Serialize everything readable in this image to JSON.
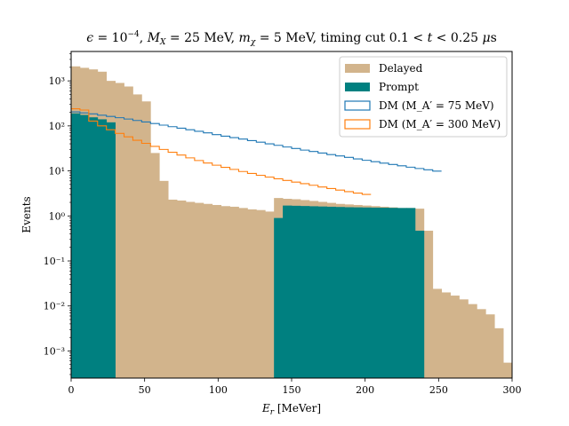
{
  "chart_data": {
    "type": "histogram",
    "title": "ϵ = 10⁻⁴, M_X = 25 MeV, m_χ = 5 MeV, timing cut 0.1 < t < 0.25 μs",
    "xlabel": "E_r [MeVer]",
    "ylabel": "Events",
    "xlim": [
      0,
      300
    ],
    "ylim": [
      0.00025,
      4500
    ],
    "yscale": "log",
    "grid": false,
    "legend_position": "top-right",
    "x_ticks": [
      0,
      50,
      100,
      150,
      200,
      250,
      300
    ],
    "y_ticks": [
      0.001,
      0.01,
      0.1,
      1,
      10,
      100,
      1000
    ],
    "y_tick_labels": [
      "10⁻³",
      "10⁻²",
      "10⁻¹",
      "10⁰",
      "10¹",
      "10²",
      "10³"
    ],
    "bin_edges": [
      0,
      6,
      12,
      18,
      24,
      30,
      36,
      42,
      48,
      54,
      60,
      66,
      72,
      78,
      84,
      90,
      96,
      102,
      108,
      114,
      120,
      126,
      132,
      138,
      144,
      150,
      156,
      162,
      168,
      174,
      180,
      186,
      192,
      198,
      204,
      210,
      216,
      222,
      228,
      234,
      240,
      246,
      252,
      258,
      264,
      270,
      276,
      282,
      288,
      294,
      300
    ],
    "series": [
      {
        "name": "Delayed",
        "style": "filled",
        "color": "#d2b48c",
        "values": [
          2100,
          1950,
          1800,
          1600,
          1000,
          900,
          750,
          500,
          350,
          25,
          6,
          2.3,
          2.2,
          2.05,
          1.95,
          1.85,
          1.75,
          1.65,
          1.6,
          1.5,
          1.4,
          1.35,
          1.25,
          2.5,
          2.4,
          2.35,
          2.25,
          2.15,
          2.05,
          1.95,
          1.85,
          1.8,
          1.75,
          1.7,
          1.65,
          1.6,
          1.55,
          1.5,
          1.5,
          1.45,
          0.47,
          0.024,
          0.02,
          0.017,
          0.014,
          0.011,
          0.0085,
          0.0065,
          0.0032,
          0.00055
        ]
      },
      {
        "name": "Prompt",
        "style": "filled",
        "color": "#008080",
        "values": [
          190,
          175,
          155,
          140,
          120,
          0,
          0,
          0,
          0,
          0,
          0,
          0,
          0,
          0,
          0,
          0,
          0,
          0,
          0,
          0,
          0,
          0,
          0,
          0.9,
          1.7,
          1.68,
          1.66,
          1.64,
          1.62,
          1.6,
          1.58,
          1.56,
          1.55,
          1.54,
          1.53,
          1.52,
          1.51,
          1.5,
          1.5,
          0.47,
          0,
          0,
          0,
          0,
          0,
          0,
          0,
          0,
          0,
          0
        ]
      },
      {
        "name": "DM (M_A′ = 75 MeV)",
        "style": "step",
        "color": "#1f77b4",
        "values": [
          205,
          195,
          185,
          173,
          162,
          152,
          142,
          132,
          122,
          113,
          104,
          96,
          89,
          82,
          76,
          70,
          64,
          59,
          55,
          51,
          47,
          43.5,
          40,
          37,
          34,
          31.5,
          29,
          27,
          25,
          23,
          21.5,
          20,
          18.5,
          17.2,
          16,
          14.9,
          13.9,
          13,
          12.1,
          11.3,
          10.6,
          9.9
        ]
      },
      {
        "name": "DM (M_A′ = 300 MeV)",
        "style": "step",
        "color": "#ff7f0e",
        "values": [
          240,
          225,
          128,
          100,
          82,
          68,
          57,
          48,
          41,
          35,
          30,
          26,
          22.5,
          19.5,
          17,
          15,
          13.4,
          12,
          10.8,
          9.7,
          8.8,
          8,
          7.3,
          6.7,
          6.15,
          5.65,
          5.2,
          4.8,
          4.4,
          4.05,
          3.75,
          3.47,
          3.22,
          3
        ]
      }
    ],
    "legend": [
      "Delayed",
      "Prompt",
      "DM (M_A′ = 75 MeV)",
      "DM (M_A′ = 300 MeV)"
    ]
  }
}
